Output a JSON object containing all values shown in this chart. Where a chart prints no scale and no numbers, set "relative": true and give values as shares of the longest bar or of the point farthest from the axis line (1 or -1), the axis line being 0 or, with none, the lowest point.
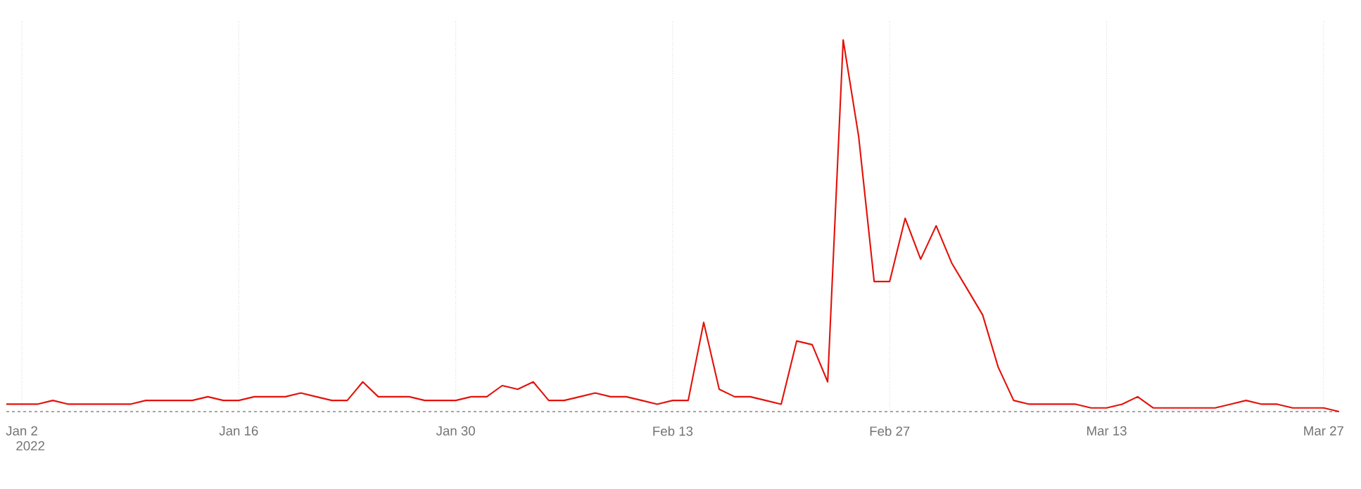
{
  "chart_data": {
    "type": "line",
    "relative": true,
    "grid": true,
    "x": [
      "2022-01-01",
      "2022-01-02",
      "2022-01-03",
      "2022-01-04",
      "2022-01-05",
      "2022-01-06",
      "2022-01-07",
      "2022-01-08",
      "2022-01-09",
      "2022-01-10",
      "2022-01-11",
      "2022-01-12",
      "2022-01-13",
      "2022-01-14",
      "2022-01-15",
      "2022-01-16",
      "2022-01-17",
      "2022-01-18",
      "2022-01-19",
      "2022-01-20",
      "2022-01-21",
      "2022-01-22",
      "2022-01-23",
      "2022-01-24",
      "2022-01-25",
      "2022-01-26",
      "2022-01-27",
      "2022-01-28",
      "2022-01-29",
      "2022-01-30",
      "2022-01-31",
      "2022-02-01",
      "2022-02-02",
      "2022-02-03",
      "2022-02-04",
      "2022-02-05",
      "2022-02-06",
      "2022-02-07",
      "2022-02-08",
      "2022-02-09",
      "2022-02-10",
      "2022-02-11",
      "2022-02-12",
      "2022-02-13",
      "2022-02-14",
      "2022-02-15",
      "2022-02-16",
      "2022-02-17",
      "2022-02-18",
      "2022-02-19",
      "2022-02-20",
      "2022-02-21",
      "2022-02-22",
      "2022-02-23",
      "2022-02-24",
      "2022-02-25",
      "2022-02-26",
      "2022-02-27",
      "2022-02-28",
      "2022-03-01",
      "2022-03-02",
      "2022-03-03",
      "2022-03-04",
      "2022-03-05",
      "2022-03-06",
      "2022-03-07",
      "2022-03-08",
      "2022-03-09",
      "2022-03-10",
      "2022-03-11",
      "2022-03-12",
      "2022-03-13",
      "2022-03-14",
      "2022-03-15",
      "2022-03-16",
      "2022-03-17",
      "2022-03-18",
      "2022-03-19",
      "2022-03-20",
      "2022-03-21",
      "2022-03-22",
      "2022-03-23",
      "2022-03-24",
      "2022-03-25",
      "2022-03-26",
      "2022-03-27",
      "2022-03-28"
    ],
    "series": [
      {
        "color": "#e3120b",
        "values": [
          0.02,
          0.02,
          0.02,
          0.03,
          0.02,
          0.02,
          0.02,
          0.02,
          0.02,
          0.03,
          0.03,
          0.03,
          0.03,
          0.04,
          0.03,
          0.03,
          0.04,
          0.04,
          0.04,
          0.05,
          0.04,
          0.03,
          0.03,
          0.08,
          0.04,
          0.04,
          0.04,
          0.03,
          0.03,
          0.03,
          0.04,
          0.04,
          0.07,
          0.06,
          0.08,
          0.03,
          0.03,
          0.04,
          0.05,
          0.04,
          0.04,
          0.03,
          0.02,
          0.03,
          0.03,
          0.24,
          0.06,
          0.04,
          0.04,
          0.03,
          0.02,
          0.19,
          0.18,
          0.08,
          1,
          0.74,
          0.35,
          0.35,
          0.52,
          0.41,
          0.5,
          0.4,
          0.33,
          0.26,
          0.12,
          0.03,
          0.02,
          0.02,
          0.02,
          0.02,
          0.01,
          0.01,
          0.02,
          0.04,
          0.01,
          0.01,
          0.01,
          0.01,
          0.01,
          0.02,
          0.03,
          0.02,
          0.02,
          0.01,
          0.01,
          0.01,
          0
        ]
      }
    ],
    "xlim": [
      "2022-01-01",
      "2022-03-28"
    ],
    "xticks": [
      {
        "value": "2022-01-02",
        "label": "Jan 2"
      },
      {
        "value": "2022-01-16",
        "label": "Jan 16"
      },
      {
        "value": "2022-01-30",
        "label": "Jan 30"
      },
      {
        "value": "2022-02-13",
        "label": "Feb 13"
      },
      {
        "value": "2022-02-27",
        "label": "Feb 27"
      },
      {
        "value": "2022-03-13",
        "label": "Mar 13"
      },
      {
        "value": "2022-03-27",
        "label": "Mar 27"
      }
    ],
    "annotations": [
      "2022"
    ]
  }
}
